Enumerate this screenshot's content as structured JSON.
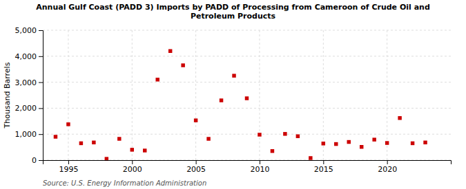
{
  "chart_data": {
    "type": "scatter",
    "title": "Annual Gulf Coast (PADD 3) Imports by PADD of Processing from Cameroon of Crude Oil and\nPetroleum Products",
    "ylabel": "Thousand Barrels",
    "source": "Source: U.S. Energy Information Administration",
    "x": [
      1994,
      1995,
      1996,
      1997,
      1998,
      1999,
      2000,
      2001,
      2002,
      2003,
      2004,
      2005,
      2006,
      2007,
      2008,
      2009,
      2010,
      2011,
      2012,
      2013,
      2014,
      2015,
      2016,
      2017,
      2018,
      2019,
      2020,
      2021,
      2022,
      2023
    ],
    "values": [
      900,
      1380,
      650,
      680,
      50,
      820,
      400,
      370,
      3100,
      4200,
      3650,
      1530,
      820,
      2300,
      3250,
      2380,
      980,
      350,
      1010,
      920,
      80,
      640,
      620,
      700,
      510,
      790,
      660,
      1620,
      650,
      680
    ],
    "color": "#cc0000",
    "marker": "square",
    "xlim": [
      1993,
      2025
    ],
    "xticks": [
      1995,
      2000,
      2005,
      2010,
      2015,
      2020
    ],
    "ylim": [
      0,
      5000
    ],
    "yticks": [
      0,
      {
        "value": 1000,
        "label": "1,000"
      },
      {
        "value": 2000,
        "label": "2,000"
      },
      {
        "value": 3000,
        "label": "3,000"
      },
      {
        "value": 4000,
        "label": "4,000"
      },
      {
        "value": 5000,
        "label": "5,000"
      }
    ],
    "grid": true
  }
}
